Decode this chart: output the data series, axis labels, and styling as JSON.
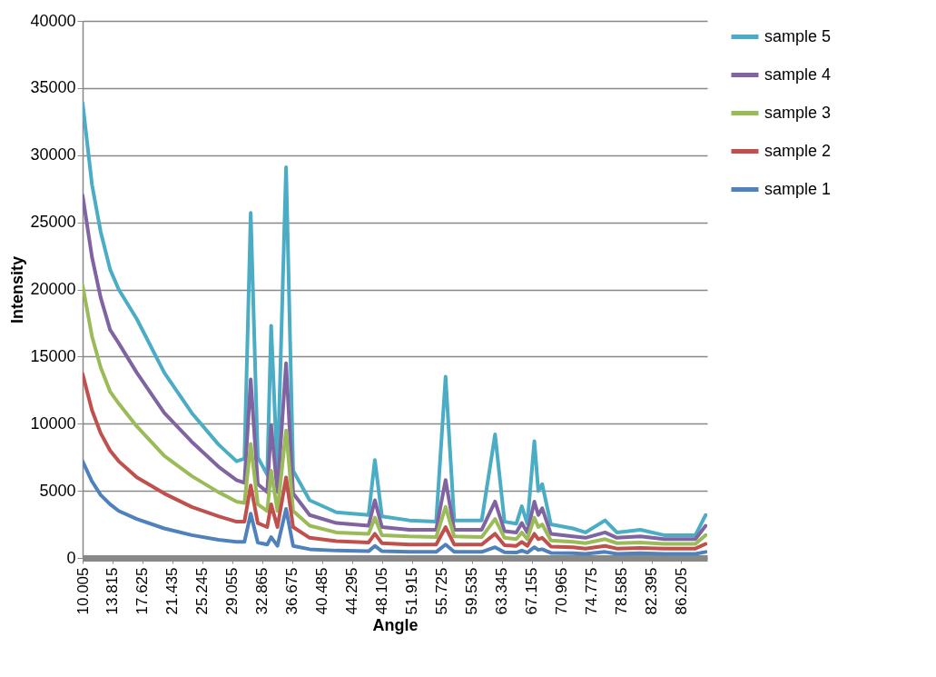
{
  "chart_data": {
    "type": "line",
    "xlabel": "Angle",
    "ylabel": "Intensity",
    "x": [
      10.005,
      11.2,
      12.3,
      13.5,
      14.6,
      16.9,
      20.4,
      23.9,
      27.3,
      29.6,
      30.6,
      31.4,
      32.3,
      33.5,
      34.0,
      34.8,
      35.9,
      36.8,
      38.9,
      42.3,
      46.4,
      47.2,
      48.1,
      51.6,
      55.0,
      56.2,
      57.3,
      60.8,
      62.5,
      63.7,
      65.2,
      65.9,
      66.6,
      67.5,
      68.0,
      68.5,
      69.6,
      72.4,
      74.0,
      76.5,
      78.0,
      81.0,
      84.0,
      88.0,
      89.3
    ],
    "series": [
      {
        "name": "sample 5",
        "color": "#4bacc6",
        "values": [
          33900,
          27800,
          24300,
          21500,
          20000,
          17800,
          13800,
          10800,
          8450,
          7200,
          7400,
          25700,
          7500,
          6200,
          17300,
          6300,
          29100,
          6500,
          4300,
          3400,
          3200,
          7300,
          3100,
          2800,
          2700,
          13500,
          2800,
          2800,
          9200,
          2700,
          2550,
          3850,
          2550,
          8700,
          5000,
          5500,
          2500,
          2200,
          1900,
          2800,
          1900,
          2100,
          1700,
          1700,
          3200
        ]
      },
      {
        "name": "sample 4",
        "color": "#8064a2",
        "values": [
          27000,
          22400,
          19400,
          17000,
          16000,
          13800,
          10800,
          8650,
          6800,
          5800,
          5600,
          13300,
          5500,
          4900,
          9900,
          4900,
          14500,
          4800,
          3200,
          2600,
          2400,
          4300,
          2300,
          2100,
          2100,
          5800,
          2100,
          2100,
          4200,
          2000,
          1900,
          2600,
          1900,
          4200,
          3200,
          3700,
          1800,
          1600,
          1500,
          1900,
          1500,
          1600,
          1400,
          1400,
          2400
        ]
      },
      {
        "name": "sample 3",
        "color": "#9bbb59",
        "values": [
          20300,
          16500,
          14200,
          12400,
          11500,
          9800,
          7600,
          6100,
          4900,
          4200,
          4100,
          8500,
          4000,
          3500,
          6500,
          3500,
          9500,
          3500,
          2400,
          1900,
          1800,
          3000,
          1700,
          1600,
          1550,
          3800,
          1600,
          1550,
          2900,
          1500,
          1400,
          1900,
          1400,
          3000,
          2300,
          2500,
          1300,
          1200,
          1100,
          1400,
          1100,
          1150,
          1050,
          1050,
          1700
        ]
      },
      {
        "name": "sample 2",
        "color": "#c0504d",
        "values": [
          13700,
          11000,
          9300,
          8000,
          7200,
          6000,
          4800,
          3800,
          3100,
          2700,
          2700,
          5400,
          2600,
          2300,
          4000,
          2300,
          6000,
          2300,
          1500,
          1250,
          1150,
          1800,
          1100,
          1000,
          1000,
          2300,
          1000,
          1000,
          1800,
          950,
          900,
          1200,
          900,
          1800,
          1400,
          1500,
          850,
          800,
          700,
          900,
          700,
          750,
          700,
          700,
          1050
        ]
      },
      {
        "name": "sample 1",
        "color": "#4f81bd",
        "values": [
          7200,
          5700,
          4700,
          4000,
          3500,
          2900,
          2200,
          1700,
          1350,
          1200,
          1200,
          3300,
          1150,
          1000,
          1550,
          900,
          3650,
          900,
          650,
          550,
          500,
          900,
          500,
          450,
          450,
          1000,
          450,
          450,
          800,
          420,
          400,
          550,
          400,
          800,
          600,
          650,
          380,
          350,
          300,
          450,
          300,
          350,
          300,
          300,
          450
        ]
      }
    ],
    "xlim": [
      10.005,
      89.5
    ],
    "xticks": [
      10.005,
      13.815,
      17.625,
      21.435,
      25.245,
      29.055,
      32.865,
      36.675,
      40.485,
      44.295,
      48.105,
      51.915,
      55.725,
      59.535,
      63.345,
      67.155,
      70.965,
      74.775,
      78.585,
      82.395,
      86.205
    ],
    "ylim": [
      0,
      40000
    ],
    "yticks": [
      0,
      5000,
      10000,
      15000,
      20000,
      25000,
      30000,
      35000,
      40000
    ],
    "grid": "y",
    "legend": "right",
    "line_style": "solid",
    "marker": "none"
  }
}
